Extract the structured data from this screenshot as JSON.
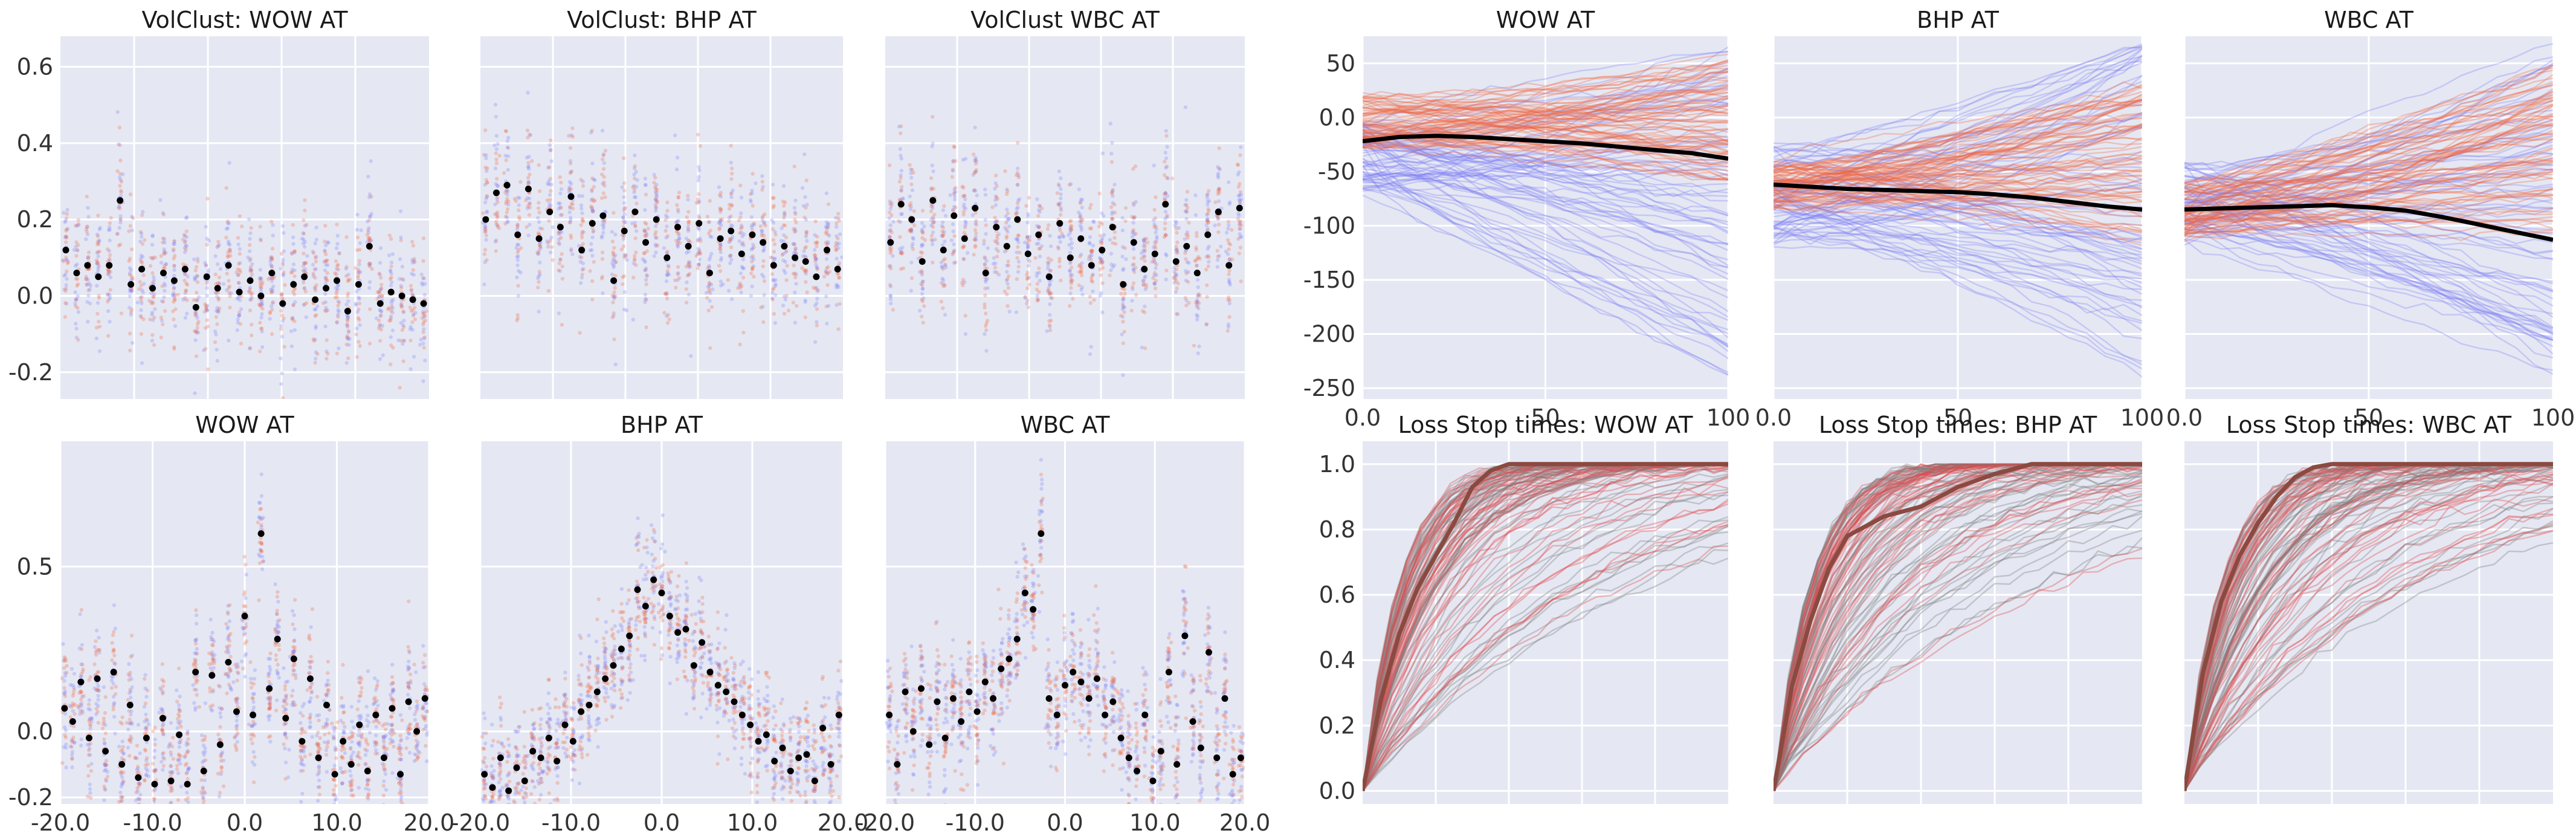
{
  "palette": {
    "background": "#ffffff",
    "panel_bg": "#e5e8f3",
    "grid": "#ffffff",
    "blue_series": "#7b7cf5",
    "red_series": "#f2643c",
    "mean_marker": "#000000",
    "loss_red": "#e0474a",
    "loss_gray": "#7f7f7f",
    "loss_mean": "#8a4a40"
  },
  "chart_data": [
    {
      "id": "volclust-wow",
      "type": "scatter",
      "title": "VolClust: WOW AT",
      "x": [
        1,
        20
      ],
      "ylim": [
        -0.27,
        0.68
      ],
      "yticks": [
        -0.2,
        0.0,
        0.2,
        0.4,
        0.6
      ],
      "ytick_labels": [
        "-0.2",
        "0.0",
        "0.2",
        "0.4",
        "0.6"
      ],
      "xtick_labels": [],
      "mean_values": [
        0.12,
        0.06,
        0.08,
        0.05,
        0.08,
        0.25,
        0.03,
        0.07,
        0.02,
        0.06,
        0.04,
        0.07,
        -0.03,
        0.05,
        0.02,
        0.08,
        0.01,
        0.04,
        0.0,
        0.06,
        -0.02,
        0.03,
        0.05,
        -0.01,
        0.02,
        0.04,
        -0.04,
        0.03,
        0.13,
        -0.02,
        0.01,
        0.0,
        -0.01,
        -0.02
      ]
    },
    {
      "id": "volclust-bhp",
      "type": "scatter",
      "title": "VolClust: BHP AT",
      "x": [
        1,
        20
      ],
      "ylim": [
        -0.27,
        0.68
      ],
      "yticks": [
        -0.2,
        0.0,
        0.2,
        0.4,
        0.6
      ],
      "ytick_labels": [],
      "xtick_labels": [],
      "mean_values": [
        0.2,
        0.27,
        0.29,
        0.16,
        0.28,
        0.15,
        0.22,
        0.18,
        0.26,
        0.12,
        0.19,
        0.21,
        0.04,
        0.17,
        0.22,
        0.14,
        0.2,
        0.1,
        0.18,
        0.13,
        0.19,
        0.06,
        0.15,
        0.17,
        0.11,
        0.16,
        0.14,
        0.08,
        0.13,
        0.1,
        0.09,
        0.05,
        0.12,
        0.07
      ]
    },
    {
      "id": "volclust-wbc",
      "type": "scatter",
      "title": "VolClust WBC AT",
      "x": [
        1,
        20
      ],
      "ylim": [
        -0.27,
        0.68
      ],
      "yticks": [
        -0.2,
        0.0,
        0.2,
        0.4,
        0.6
      ],
      "ytick_labels": [],
      "xtick_labels": [],
      "mean_values": [
        0.14,
        0.24,
        0.2,
        0.09,
        0.25,
        0.12,
        0.21,
        0.15,
        0.23,
        0.06,
        0.18,
        0.13,
        0.2,
        0.11,
        0.16,
        0.05,
        0.19,
        0.1,
        0.15,
        0.08,
        0.12,
        0.18,
        0.03,
        0.14,
        0.07,
        0.11,
        0.24,
        0.09,
        0.13,
        0.06,
        0.16,
        0.22,
        0.08,
        0.23
      ]
    },
    {
      "id": "acf-wow",
      "type": "scatter",
      "title": "WOW AT",
      "x": [
        -20,
        20
      ],
      "ylim": [
        -0.22,
        0.88
      ],
      "yticks": [
        -0.2,
        0.0,
        0.5
      ],
      "ytick_labels": [
        "-0.2",
        "0.0",
        "0.5"
      ],
      "xticks": [
        -20,
        -10,
        0,
        10,
        20
      ],
      "xtick_labels": [
        "-20.0",
        "-10.0",
        "0.0",
        "10.0",
        "20.0"
      ],
      "mean_values": [
        0.07,
        0.03,
        0.15,
        -0.02,
        0.16,
        -0.06,
        0.18,
        -0.1,
        0.08,
        -0.14,
        -0.02,
        -0.16,
        0.04,
        -0.15,
        -0.01,
        -0.16,
        0.18,
        -0.12,
        0.17,
        -0.04,
        0.21,
        0.06,
        0.35,
        0.05,
        0.6,
        0.13,
        0.28,
        0.04,
        0.22,
        -0.03,
        0.16,
        -0.08,
        0.08,
        -0.13,
        -0.03,
        -0.1,
        0.02,
        -0.12,
        0.05,
        -0.08,
        0.07,
        -0.13,
        0.09,
        0.0,
        0.1
      ]
    },
    {
      "id": "acf-bhp",
      "type": "scatter",
      "title": "BHP AT",
      "x": [
        -20,
        20
      ],
      "ylim": [
        -0.22,
        0.88
      ],
      "yticks": [
        -0.2,
        0.0,
        0.5
      ],
      "ytick_labels": [],
      "xticks": [
        -20,
        -10,
        0,
        10,
        20
      ],
      "xtick_labels": [
        "-20.0",
        "-10.0",
        "0.0",
        "10.0",
        "20.0"
      ],
      "mean_values": [
        -0.13,
        -0.17,
        -0.08,
        -0.18,
        -0.11,
        -0.15,
        -0.06,
        -0.08,
        -0.02,
        -0.09,
        0.02,
        -0.03,
        0.06,
        0.08,
        0.12,
        0.16,
        0.2,
        0.25,
        0.29,
        0.43,
        0.38,
        0.46,
        0.42,
        0.35,
        0.3,
        0.31,
        0.2,
        0.27,
        0.18,
        0.14,
        0.12,
        0.09,
        0.05,
        0.02,
        -0.03,
        -0.01,
        -0.09,
        -0.05,
        -0.12,
        -0.08,
        -0.07,
        -0.15,
        0.01,
        -0.1,
        0.05
      ]
    },
    {
      "id": "acf-wbc",
      "type": "scatter",
      "title": "WBC AT",
      "x": [
        -20,
        20
      ],
      "ylim": [
        -0.22,
        0.88
      ],
      "yticks": [
        -0.2,
        0.0,
        0.5
      ],
      "ytick_labels": [],
      "xticks": [
        -20,
        -10,
        0,
        10,
        20
      ],
      "xtick_labels": [
        "-20.0",
        "-10.0",
        "0.0",
        "10.0",
        "20.0"
      ],
      "mean_values": [
        0.05,
        -0.1,
        0.12,
        0.0,
        0.13,
        -0.04,
        0.09,
        -0.02,
        0.1,
        0.03,
        0.12,
        0.06,
        0.15,
        0.1,
        0.19,
        0.22,
        0.28,
        0.42,
        0.37,
        0.6,
        0.1,
        0.05,
        0.14,
        0.18,
        0.15,
        0.1,
        0.16,
        0.05,
        0.09,
        -0.02,
        -0.08,
        -0.12,
        0.05,
        -0.15,
        -0.06,
        0.18,
        -0.1,
        0.29,
        0.03,
        -0.05,
        0.24,
        -0.08,
        0.1,
        -0.13,
        -0.08
      ]
    },
    {
      "id": "paths-wow",
      "type": "line",
      "title": "WOW AT",
      "x": [
        0,
        100
      ],
      "ylim": [
        -260,
        75
      ],
      "yticks": [
        -250,
        -200,
        -150,
        -100,
        -50,
        0,
        50
      ],
      "ytick_labels": [
        "-250",
        "-200",
        "-150",
        "-100",
        "-50",
        "0.0",
        "50"
      ],
      "xticks": [
        0,
        50,
        100
      ],
      "xtick_labels": [
        "0.0",
        "50",
        "100"
      ],
      "mean_path": {
        "x": [
          0,
          10,
          20,
          30,
          40,
          50,
          60,
          70,
          80,
          90,
          100
        ],
        "y": [
          -22,
          -18,
          -17,
          -18,
          -20,
          -22,
          -24,
          -27,
          -30,
          -33,
          -38
        ]
      },
      "red_paths": {
        "start_range": [
          -30,
          20
        ],
        "end_range": [
          -60,
          60
        ]
      },
      "blue_paths": {
        "start_range": [
          -70,
          0
        ],
        "end_range": [
          -240,
          65
        ]
      }
    },
    {
      "id": "paths-bhp",
      "type": "line",
      "title": "BHP AT",
      "x": [
        0,
        100
      ],
      "ylim": [
        -260,
        75
      ],
      "yticks": [
        -250,
        -200,
        -150,
        -100,
        -50,
        0,
        50
      ],
      "ytick_labels": [],
      "xticks": [
        0,
        50,
        100
      ],
      "xtick_labels": [
        "0.0",
        "50",
        "100"
      ],
      "mean_path": {
        "x": [
          0,
          10,
          20,
          30,
          40,
          50,
          60,
          70,
          80,
          90,
          100
        ],
        "y": [
          -62,
          -64,
          -66,
          -67,
          -68,
          -69,
          -71,
          -74,
          -78,
          -82,
          -85
        ]
      },
      "red_paths": {
        "start_range": [
          -85,
          -40
        ],
        "end_range": [
          -120,
          40
        ]
      },
      "blue_paths": {
        "start_range": [
          -120,
          -20
        ],
        "end_range": [
          -240,
          70
        ]
      }
    },
    {
      "id": "paths-wbc",
      "type": "line",
      "title": "WBC AT",
      "x": [
        0,
        100
      ],
      "ylim": [
        -260,
        75
      ],
      "yticks": [
        -250,
        -200,
        -150,
        -100,
        -50,
        0,
        50
      ],
      "ytick_labels": [],
      "xticks": [
        0,
        50,
        100
      ],
      "xtick_labels": [
        "0.0",
        "50",
        "100"
      ],
      "mean_path": {
        "x": [
          0,
          10,
          20,
          30,
          40,
          50,
          60,
          70,
          80,
          90,
          100
        ],
        "y": [
          -85,
          -84,
          -83,
          -82,
          -81,
          -83,
          -86,
          -92,
          -99,
          -106,
          -113
        ]
      },
      "red_paths": {
        "start_range": [
          -110,
          -60
        ],
        "end_range": [
          -110,
          55
        ]
      },
      "blue_paths": {
        "start_range": [
          -120,
          -40
        ],
        "end_range": [
          -240,
          70
        ]
      }
    },
    {
      "id": "loss-wow",
      "type": "line",
      "title": "Loss Stop times: WOW AT",
      "x": [
        0,
        100
      ],
      "ylim": [
        -0.04,
        1.07
      ],
      "yticks": [
        0.0,
        0.2,
        0.4,
        0.6,
        0.8,
        1.0
      ],
      "ytick_labels": [
        "0.0",
        "0.2",
        "0.4",
        "0.6",
        "0.8",
        "1.0"
      ],
      "xtick_labels": [],
      "mean_curve": {
        "x": [
          0,
          5,
          10,
          15,
          20,
          25,
          30,
          35,
          40,
          50,
          60,
          100
        ],
        "y": [
          0.0,
          0.28,
          0.48,
          0.62,
          0.72,
          0.82,
          0.93,
          0.98,
          1.0,
          1.0,
          1.0,
          1.0
        ]
      },
      "curve_rate_range": [
        0.012,
        0.1
      ]
    },
    {
      "id": "loss-bhp",
      "type": "line",
      "title": "Loss Stop times: BHP AT",
      "x": [
        0,
        100
      ],
      "ylim": [
        -0.04,
        1.07
      ],
      "yticks": [
        0.0,
        0.2,
        0.4,
        0.6,
        0.8,
        1.0
      ],
      "ytick_labels": [],
      "xtick_labels": [],
      "mean_curve": {
        "x": [
          0,
          5,
          10,
          15,
          20,
          30,
          40,
          50,
          60,
          70,
          80,
          100
        ],
        "y": [
          0.0,
          0.32,
          0.52,
          0.68,
          0.78,
          0.84,
          0.87,
          0.93,
          0.97,
          1.0,
          1.0,
          1.0
        ]
      },
      "curve_rate_range": [
        0.012,
        0.1
      ]
    },
    {
      "id": "loss-wbc",
      "type": "line",
      "title": "Loss Stop times: WBC AT",
      "x": [
        0,
        100
      ],
      "ylim": [
        -0.04,
        1.07
      ],
      "yticks": [
        0.0,
        0.2,
        0.4,
        0.6,
        0.8,
        1.0
      ],
      "ytick_labels": [],
      "xtick_labels": [],
      "mean_curve": {
        "x": [
          0,
          5,
          10,
          15,
          20,
          25,
          30,
          35,
          40,
          50,
          60,
          100
        ],
        "y": [
          0.0,
          0.36,
          0.58,
          0.72,
          0.82,
          0.9,
          0.96,
          0.99,
          1.0,
          1.0,
          1.0,
          1.0
        ]
      },
      "curve_rate_range": [
        0.012,
        0.1
      ]
    }
  ]
}
